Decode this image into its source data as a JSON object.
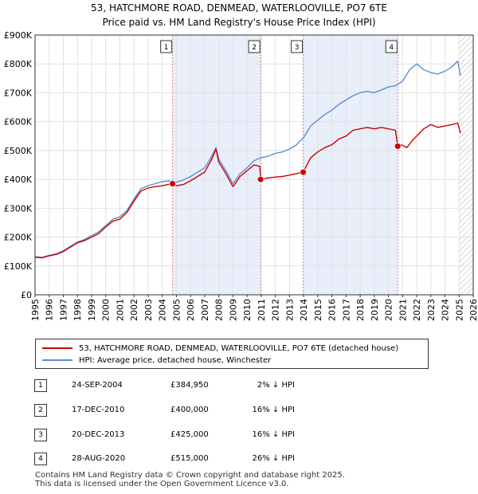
{
  "title": "53, HATCHMORE ROAD, DENMEAD, WATERLOOVILLE, PO7 6TE",
  "subtitle": "Price paid vs. HM Land Registry's House Price Index (HPI)",
  "colors": {
    "property": "#cc0000",
    "hpi": "#5b8fd4",
    "shade": "#e8eefa",
    "marker_line": "#dd8888"
  },
  "chart_data": {
    "type": "line",
    "title": "53, HATCHMORE ROAD, DENMEAD, WATERLOOVILLE, PO7 6TE",
    "xlim": [
      1995,
      2026
    ],
    "ylim": [
      0,
      900000
    ],
    "x_ticks": [
      "1995",
      "1996",
      "1997",
      "1998",
      "1999",
      "2000",
      "2001",
      "2002",
      "2003",
      "2004",
      "2005",
      "2006",
      "2007",
      "2008",
      "2009",
      "2010",
      "2011",
      "2012",
      "2013",
      "2014",
      "2015",
      "2016",
      "2017",
      "2018",
      "2019",
      "2020",
      "2021",
      "2022",
      "2023",
      "2024",
      "2025",
      "2026"
    ],
    "y_ticks": [
      {
        "value": 0,
        "label": "£0"
      },
      {
        "value": 100000,
        "label": "£100K"
      },
      {
        "value": 200000,
        "label": "£200K"
      },
      {
        "value": 300000,
        "label": "£300K"
      },
      {
        "value": 400000,
        "label": "£400K"
      },
      {
        "value": 500000,
        "label": "£500K"
      },
      {
        "value": 600000,
        "label": "£600K"
      },
      {
        "value": 700000,
        "label": "£700K"
      },
      {
        "value": 800000,
        "label": "£800K"
      },
      {
        "value": 900000,
        "label": "£900K"
      }
    ],
    "shaded_ranges": [
      [
        2004.73,
        2010.96
      ],
      [
        2013.97,
        2020.66
      ]
    ],
    "hatch_from": 2025.0,
    "series": [
      {
        "name": "53, HATCHMORE ROAD, DENMEAD, WATERLOOVILLE, PO7 6TE (detached house)",
        "x": [
          1995.0,
          1995.5,
          1996.0,
          1996.5,
          1997.0,
          1997.5,
          1998.0,
          1998.5,
          1999.0,
          1999.5,
          2000.0,
          2000.5,
          2001.0,
          2001.5,
          2002.0,
          2002.5,
          2003.0,
          2003.5,
          2004.0,
          2004.5,
          2004.73,
          2005.0,
          2005.5,
          2006.0,
          2006.5,
          2007.0,
          2007.5,
          2007.8,
          2008.0,
          2008.5,
          2009.0,
          2009.3,
          2009.5,
          2010.0,
          2010.5,
          2010.9,
          2010.96,
          2011.5,
          2012.0,
          2012.5,
          2013.0,
          2013.5,
          2013.97,
          2014.5,
          2015.0,
          2015.5,
          2016.0,
          2016.5,
          2017.0,
          2017.5,
          2018.0,
          2018.5,
          2019.0,
          2019.5,
          2020.0,
          2020.5,
          2020.66,
          2020.9,
          2021.3,
          2021.7,
          2022.0,
          2022.5,
          2023.0,
          2023.5,
          2024.0,
          2024.5,
          2024.9,
          2025.1
        ],
        "values": [
          130000,
          128000,
          135000,
          140000,
          150000,
          165000,
          180000,
          188000,
          200000,
          212000,
          235000,
          255000,
          262000,
          285000,
          325000,
          360000,
          370000,
          375000,
          378000,
          383000,
          384950,
          378000,
          382000,
          395000,
          410000,
          425000,
          470000,
          505000,
          460000,
          420000,
          375000,
          395000,
          410000,
          430000,
          450000,
          445000,
          400000,
          405000,
          408000,
          410000,
          415000,
          420000,
          425000,
          475000,
          495000,
          510000,
          520000,
          540000,
          550000,
          570000,
          575000,
          580000,
          575000,
          580000,
          575000,
          570000,
          515000,
          520000,
          510000,
          535000,
          550000,
          575000,
          590000,
          580000,
          585000,
          590000,
          595000,
          560000
        ]
      },
      {
        "name": "HPI: Average price, detached house, Winchester",
        "x": [
          1995.0,
          1995.5,
          1996.0,
          1996.5,
          1997.0,
          1997.5,
          1998.0,
          1998.5,
          1999.0,
          1999.5,
          2000.0,
          2000.5,
          2001.0,
          2001.5,
          2002.0,
          2002.5,
          2003.0,
          2003.5,
          2004.0,
          2004.5,
          2005.0,
          2005.5,
          2006.0,
          2006.5,
          2007.0,
          2007.5,
          2007.8,
          2008.0,
          2008.5,
          2009.0,
          2009.3,
          2009.5,
          2010.0,
          2010.5,
          2011.0,
          2011.5,
          2012.0,
          2012.5,
          2013.0,
          2013.5,
          2014.0,
          2014.5,
          2015.0,
          2015.5,
          2016.0,
          2016.5,
          2017.0,
          2017.5,
          2018.0,
          2018.5,
          2019.0,
          2019.5,
          2020.0,
          2020.5,
          2021.0,
          2021.5,
          2022.0,
          2022.5,
          2023.0,
          2023.5,
          2024.0,
          2024.5,
          2024.9,
          2025.1
        ],
        "values": [
          132000,
          130000,
          137000,
          142000,
          153000,
          168000,
          183000,
          192000,
          205000,
          218000,
          240000,
          262000,
          270000,
          292000,
          332000,
          368000,
          378000,
          385000,
          392000,
          395000,
          390000,
          398000,
          410000,
          425000,
          440000,
          480000,
          510000,
          470000,
          430000,
          385000,
          405000,
          420000,
          440000,
          465000,
          475000,
          480000,
          490000,
          495000,
          505000,
          520000,
          545000,
          585000,
          605000,
          625000,
          640000,
          660000,
          675000,
          690000,
          700000,
          705000,
          700000,
          710000,
          720000,
          725000,
          740000,
          780000,
          800000,
          780000,
          770000,
          765000,
          775000,
          790000,
          810000,
          760000
        ]
      }
    ],
    "sales": [
      {
        "id": "1",
        "x": 2004.73,
        "value": 384950
      },
      {
        "id": "2",
        "x": 2010.96,
        "value": 400000
      },
      {
        "id": "3",
        "x": 2013.97,
        "value": 425000
      },
      {
        "id": "4",
        "x": 2020.66,
        "value": 515000
      }
    ]
  },
  "legend": {
    "property": "53, HATCHMORE ROAD, DENMEAD, WATERLOOVILLE, PO7 6TE (detached house)",
    "hpi": "HPI: Average price, detached house, Winchester"
  },
  "transactions": [
    {
      "num": "1",
      "date": "24-SEP-2004",
      "price": "£384,950",
      "hpi": "2% ↓ HPI"
    },
    {
      "num": "2",
      "date": "17-DEC-2010",
      "price": "£400,000",
      "hpi": "16% ↓ HPI"
    },
    {
      "num": "3",
      "date": "20-DEC-2013",
      "price": "£425,000",
      "hpi": "16% ↓ HPI"
    },
    {
      "num": "4",
      "date": "28-AUG-2020",
      "price": "£515,000",
      "hpi": "26% ↓ HPI"
    }
  ],
  "footer": {
    "line1": "Contains HM Land Registry data © Crown copyright and database right 2025.",
    "line2": "This data is licensed under the Open Government Licence v3.0."
  }
}
